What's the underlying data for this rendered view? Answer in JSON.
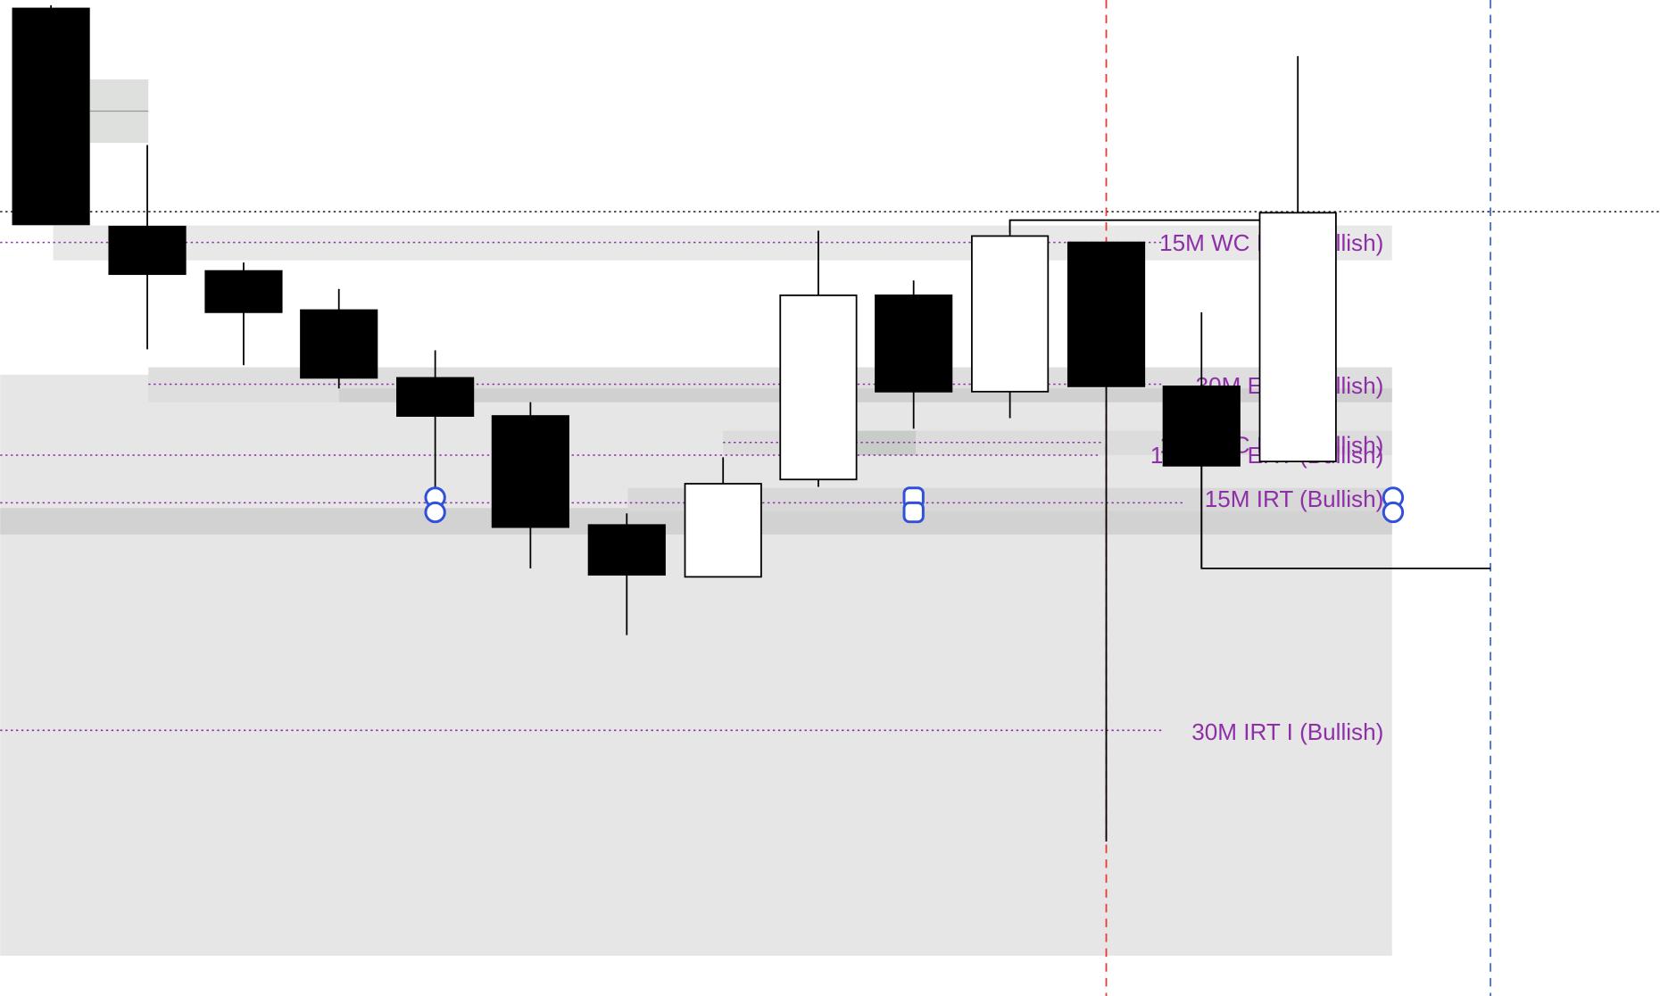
{
  "zones": {
    "labels": [
      "15M WC IRT (Bullish)",
      "30M ERT (Bullish)",
      "15M WC IRT (Bullish)",
      "15M WC ERT (Bullish)",
      "15M IRT (Bullish)",
      "30M IRT I (Bullish)"
    ]
  }
}
